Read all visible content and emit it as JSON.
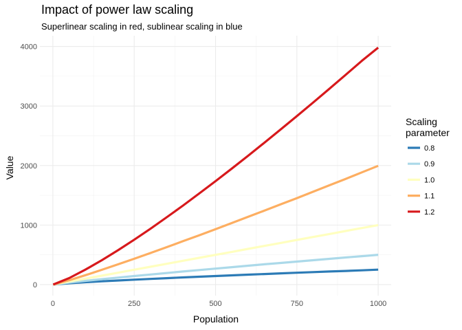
{
  "chart_data": {
    "type": "line",
    "title": "Impact of power law scaling",
    "subtitle": "Superlinear scaling in red, sublinear scaling in blue",
    "xlabel": "Population",
    "ylabel": "Value",
    "xlim": [
      0,
      1000
    ],
    "ylim": [
      0,
      4000
    ],
    "x_ticks": [
      0,
      250,
      500,
      750,
      1000
    ],
    "y_ticks": [
      0,
      1000,
      2000,
      3000,
      4000
    ],
    "grid": true,
    "legend": {
      "title_lines": [
        "Scaling",
        "parameter"
      ],
      "placement": "right"
    },
    "x": [
      1,
      50,
      100,
      150,
      200,
      250,
      300,
      350,
      400,
      450,
      500,
      550,
      600,
      650,
      700,
      750,
      800,
      850,
      900,
      950,
      1000
    ],
    "series": [
      {
        "name": "0.8",
        "color": "#2c7bb6",
        "values": [
          1,
          23,
          40,
          55,
          69,
          83,
          96,
          108,
          121,
          133,
          144,
          156,
          167,
          178,
          189,
          199,
          210,
          220,
          230,
          240,
          251
        ]
      },
      {
        "name": "0.9",
        "color": "#abd9e9",
        "values": [
          1,
          34,
          63,
          91,
          118,
          144,
          170,
          195,
          220,
          245,
          269,
          293,
          317,
          341,
          364,
          387,
          410,
          433,
          456,
          478,
          501
        ]
      },
      {
        "name": "1.0",
        "color": "#ffffbf",
        "values": [
          1,
          50,
          100,
          150,
          200,
          250,
          300,
          350,
          400,
          450,
          500,
          550,
          600,
          650,
          700,
          750,
          800,
          850,
          900,
          950,
          1000
        ]
      },
      {
        "name": "1.1",
        "color": "#fdae61",
        "values": [
          1,
          74,
          158,
          248,
          340,
          434,
          531,
          629,
          729,
          829,
          931,
          1034,
          1138,
          1242,
          1347,
          1453,
          1560,
          1668,
          1776,
          1885,
          1995
        ]
      },
      {
        "name": "1.2",
        "color": "#d7191c",
        "values": [
          1,
          109,
          251,
          408,
          577,
          754,
          939,
          1131,
          1328,
          1531,
          1738,
          1949,
          2164,
          2383,
          2605,
          2830,
          3058,
          3290,
          3524,
          3760,
          3981
        ]
      }
    ]
  }
}
